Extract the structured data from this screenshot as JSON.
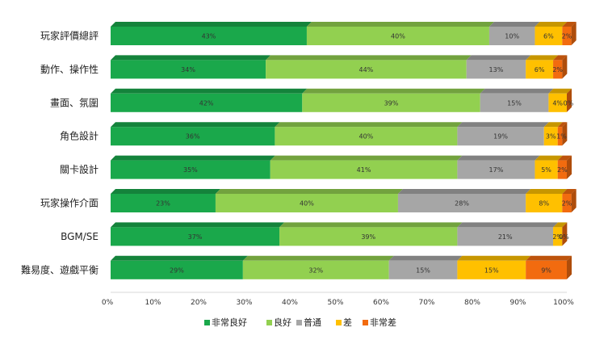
{
  "chart_data": {
    "type": "bar",
    "orientation": "horizontal",
    "stacked": true,
    "percent_stacked": true,
    "categories": [
      "玩家評價總評",
      "動作、操作性",
      "畫面、氛圍",
      "角色設計",
      "關卡設計",
      "玩家操作介面",
      "BGM/SE",
      "難易度、遊戲平衡"
    ],
    "series": [
      {
        "name": "非常良好",
        "color": "#1aa84b",
        "values": [
          43,
          34,
          42,
          36,
          35,
          23,
          37,
          29
        ]
      },
      {
        "name": "良好",
        "color": "#92d050",
        "values": [
          40,
          44,
          39,
          40,
          41,
          40,
          39,
          32
        ]
      },
      {
        "name": "普通",
        "color": "#a6a6a6",
        "values": [
          10,
          13,
          15,
          19,
          17,
          28,
          21,
          15
        ]
      },
      {
        "name": "差",
        "color": "#ffc000",
        "values": [
          6,
          6,
          4,
          3,
          5,
          8,
          2,
          15
        ]
      },
      {
        "name": "非常差",
        "color": "#f26b0f",
        "values": [
          2,
          2,
          0,
          1,
          2,
          2,
          0,
          9
        ]
      }
    ],
    "segment_labels": [
      [
        "43%",
        "40%",
        "10%",
        "6%",
        "2%"
      ],
      [
        "34%",
        "44%",
        "13%",
        "6%",
        "2%"
      ],
      [
        "42%",
        "39%",
        "15%",
        "4%",
        "0%"
      ],
      [
        "36%",
        "40%",
        "19%",
        "3%",
        "1%"
      ],
      [
        "35%",
        "41%",
        "17%",
        "5%",
        "2%"
      ],
      [
        "23%",
        "40%",
        "28%",
        "8%",
        "2%"
      ],
      [
        "37%",
        "39%",
        "21%",
        "2%",
        "0%"
      ],
      [
        "29%",
        "32%",
        "15%",
        "15%",
        "9%"
      ]
    ],
    "x_ticks": [
      "0%",
      "10%",
      "20%",
      "30%",
      "40%",
      "50%",
      "60%",
      "70%",
      "80%",
      "90%",
      "100%"
    ],
    "xlim": [
      0,
      100
    ],
    "grid": false,
    "legend_position": "bottom",
    "style_3d": true
  }
}
